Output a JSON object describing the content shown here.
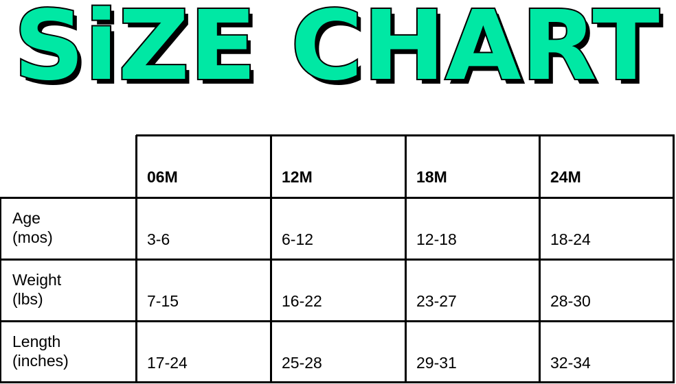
{
  "title": "SiZE CHART",
  "colors": {
    "title_fill": "#00E8A4",
    "title_outline": "#000000"
  },
  "table": {
    "columns": [
      "06M",
      "12M",
      "18M",
      "24M"
    ],
    "rows": [
      {
        "label_line1": "Age",
        "label_line2": "(mos)",
        "values": [
          "3-6",
          "6-12",
          "12-18",
          "18-24"
        ]
      },
      {
        "label_line1": "Weight",
        "label_line2": "(lbs)",
        "values": [
          "7-15",
          "16-22",
          "23-27",
          "28-30"
        ]
      },
      {
        "label_line1": "Length",
        "label_line2": "(inches)",
        "values": [
          "17-24",
          "25-28",
          "29-31",
          "32-34"
        ]
      }
    ]
  }
}
